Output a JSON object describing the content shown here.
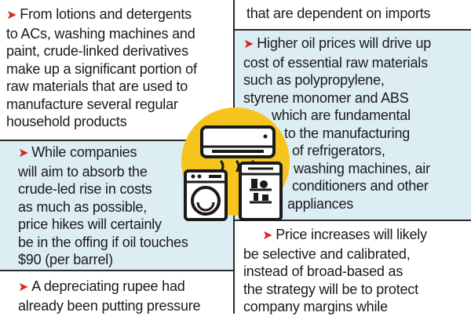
{
  "left_top": {
    "lines": [
      "From lotions and detergents",
      "to ACs, washing machines and",
      "paint, crude-linked derivatives",
      "make up a significant portion of",
      "raw materials that are used to",
      "manufacture several regular",
      "household products"
    ]
  },
  "left_middle": {
    "lines": [
      "While companies",
      "will aim to absorb the",
      "crude-led rise in costs",
      "as much as possible,",
      "price hikes will certainly",
      "be in the offing if oil touches",
      "$90 (per barrel)"
    ]
  },
  "left_bottom": {
    "lines": [
      "A depreciating rupee had",
      "already been putting pressure"
    ]
  },
  "right_top": {
    "lines": [
      "that are dependent on imports"
    ]
  },
  "right_middle": {
    "lines": [
      "Higher oil prices will drive up",
      "cost of essential raw materials",
      "such as polypropylene,",
      "styrene monomer and ABS",
      "which are fundamental",
      "to the manufacturing",
      "of refrigerators,",
      "washing machines, air",
      "conditioners and other",
      "appliances"
    ]
  },
  "right_bottom": {
    "lines": [
      "Price increases will likely",
      "be selective and calibrated,",
      "instead of broad-based as",
      "the strategy will be to protect",
      "company margins while"
    ]
  },
  "arrow_glyph": "➤",
  "colors": {
    "accent": "#d9261c",
    "panel_blue": "#dcedf4",
    "circle_yellow": "#f5c51e",
    "ink": "#1a1a1a"
  },
  "icons": [
    "air-conditioner-icon",
    "washing-machine-icon",
    "refrigerator-icon"
  ]
}
